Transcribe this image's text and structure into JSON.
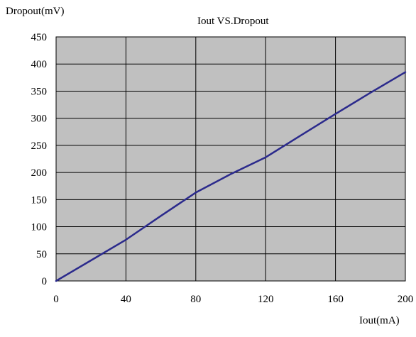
{
  "chart_data": {
    "type": "line",
    "title": "Iout VS.Dropout",
    "xlabel": "Iout(mA)",
    "ylabel": "Dropout(mV)",
    "xlim": [
      0,
      200
    ],
    "ylim": [
      0,
      450
    ],
    "x_ticks": [
      0,
      40,
      80,
      120,
      160,
      200
    ],
    "y_ticks": [
      0,
      50,
      100,
      150,
      200,
      250,
      300,
      350,
      400,
      450
    ],
    "grid": true,
    "colors": {
      "plot_background": "#c0c0c0",
      "grid": "#000000",
      "line": "#2b2a8c"
    },
    "series": [
      {
        "x": [
          0,
          20,
          40,
          60,
          80,
          100,
          120,
          140,
          160,
          180,
          200
        ],
        "y": [
          0,
          38,
          76,
          120,
          163,
          197,
          228,
          268,
          308,
          347,
          385
        ]
      }
    ]
  }
}
